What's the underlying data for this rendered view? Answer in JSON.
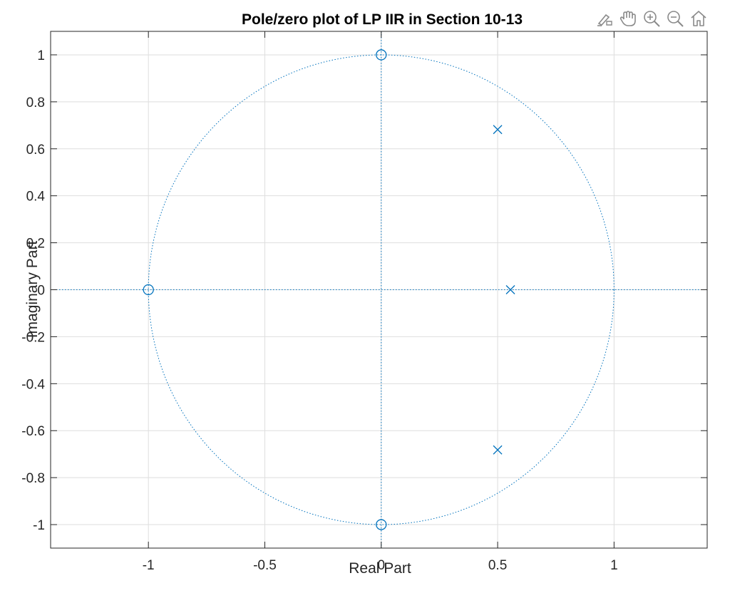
{
  "chart_data": {
    "type": "scatter",
    "title": "Pole/zero plot of LP IIR in Section 10-13",
    "xlabel": "Real Part",
    "ylabel": "Imaginary Part",
    "xlim": [
      -1.42,
      1.4
    ],
    "ylim": [
      -1.1,
      1.1
    ],
    "xticks": [
      -1,
      -0.5,
      0,
      0.5,
      1
    ],
    "xtick_labels": [
      "-1",
      "-0.5",
      "0",
      "0.5",
      "1"
    ],
    "yticks": [
      1,
      0.8,
      0.6,
      0.4,
      0.2,
      0,
      -0.2,
      -0.4,
      -0.6,
      -0.8,
      -1
    ],
    "ytick_labels": [
      "1",
      "0.8",
      "0.6",
      "0.4",
      "0.2",
      "0",
      "-0.2",
      "-0.4",
      "-0.6",
      "-0.8",
      "-1"
    ],
    "grid": true,
    "unit_circle": true,
    "series": [
      {
        "marker": "o",
        "x": [
          0,
          -1,
          0
        ],
        "y": [
          1,
          0,
          -1
        ]
      },
      {
        "marker": "x",
        "x": [
          0.5,
          0.555,
          0.5
        ],
        "y": [
          0.682,
          0,
          -0.682
        ]
      }
    ],
    "color": "#0072BD"
  },
  "toolbar": {
    "icons": [
      "brush-icon",
      "pan-hand-icon",
      "zoom-in-icon",
      "zoom-out-icon",
      "home-icon"
    ]
  }
}
